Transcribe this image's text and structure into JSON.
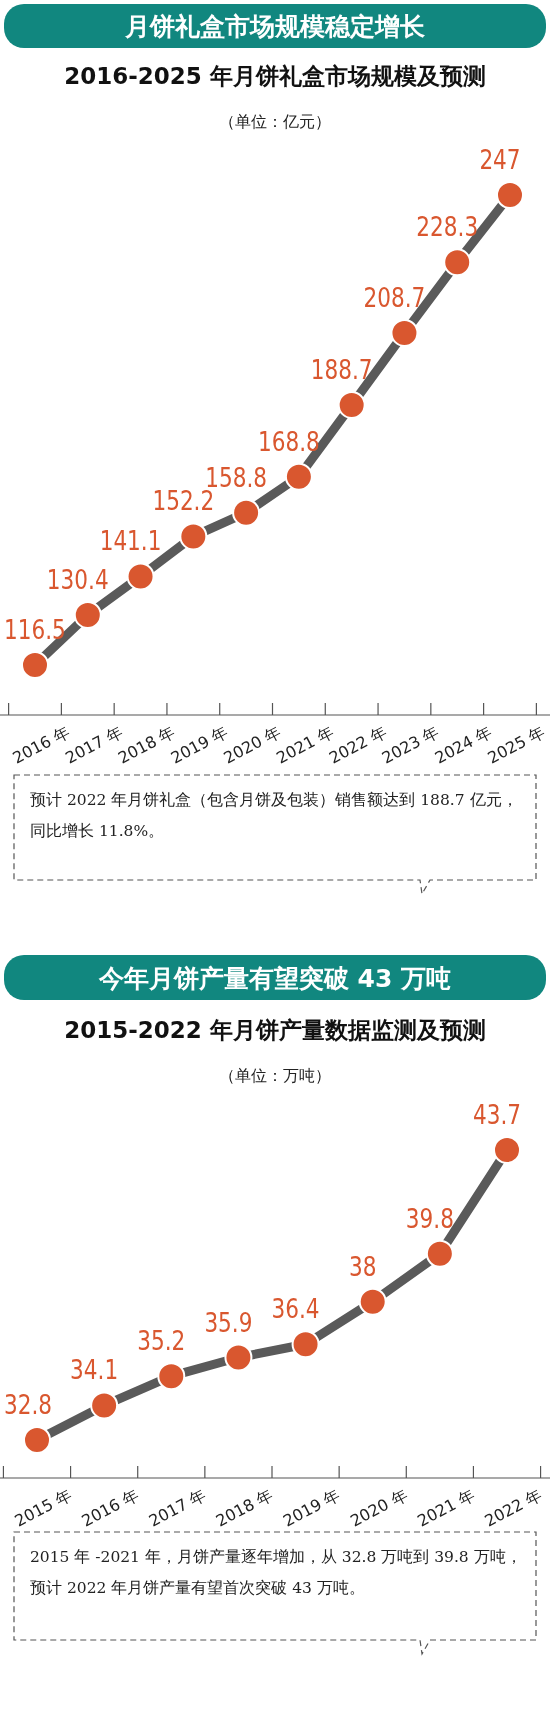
{
  "chart_data": [
    {
      "type": "line",
      "title": "月饼礼盒市场规模稳定增长",
      "subtitle": "2016-2025 年月饼礼盒市场规模及预测",
      "ylabel": "（单位：亿元）",
      "categories": [
        "2016 年",
        "2017 年",
        "2018 年",
        "2019 年",
        "2020 年",
        "2021 年",
        "2022 年",
        "2023 年",
        "2024 年",
        "2025 年"
      ],
      "series": [
        {
          "color": "#5a5a5a",
          "values": [
            116.5,
            130.4,
            141.1,
            152.2,
            158.8,
            168.8,
            188.7,
            208.7,
            228.3,
            247
          ]
        }
      ],
      "colors": [
        "#d9572f",
        "#d9572f",
        "#d9572f",
        "#d9572f",
        "#d9572f",
        "#d9572f",
        "#d9572f",
        "#d9572f",
        "#d9572f",
        "#d9572f"
      ],
      "data_labels": true,
      "marker": "circle",
      "line_style": "solid",
      "annotations": [
        "预计 2022 年月饼礼盒（包含月饼及包装）销售额达到 188.7 亿元，同比增长 11.8%。"
      ]
    },
    {
      "type": "line",
      "title": "今年月饼产量有望突破 43 万吨",
      "subtitle": "2015-2022 年月饼产量数据监测及预测",
      "ylabel": "（单位：万吨）",
      "categories": [
        "2015 年",
        "2016 年",
        "2017 年",
        "2018 年",
        "2019 年",
        "2020 年",
        "2021 年",
        "2022 年"
      ],
      "series": [
        {
          "color": "#5a5a5a",
          "values": [
            32.8,
            34.1,
            35.2,
            35.9,
            36.4,
            38,
            39.8,
            43.7
          ]
        }
      ],
      "colors": [
        "#d9572f",
        "#d9572f",
        "#d9572f",
        "#d9572f",
        "#d9572f",
        "#d9572f",
        "#d9572f",
        "#d9572f"
      ],
      "data_labels": true,
      "marker": "circle",
      "line_style": "solid",
      "annotations": [
        "2015 年 -2021 年，月饼产量逐年增加，从 32.8 万吨到 39.8 万吨，预计 2022 年月饼产量有望首次突破 43 万吨。"
      ]
    }
  ]
}
